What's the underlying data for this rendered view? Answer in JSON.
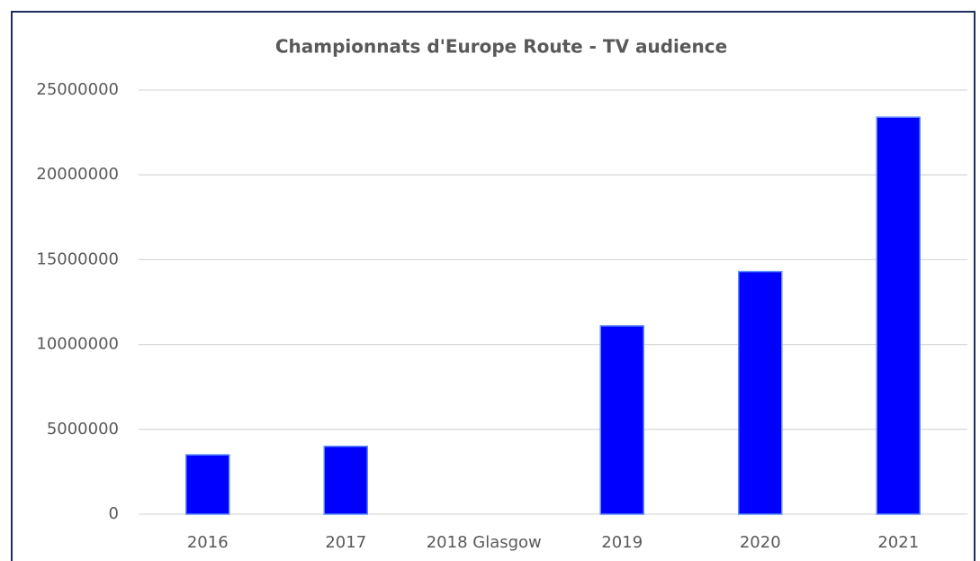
{
  "chart_data": {
    "type": "bar",
    "title": "Championnats d'Europe Route - TV audience",
    "categories": [
      "2016",
      "2017",
      "2018 Glasgow",
      "2019",
      "2020",
      "2021"
    ],
    "values": [
      3500000,
      4000000,
      null,
      11100000,
      14300000,
      23400000
    ],
    "color": "#0000ff",
    "ylim": [
      0,
      25000000
    ],
    "yticks": [
      0,
      5000000,
      10000000,
      15000000,
      20000000,
      25000000
    ],
    "grid": true
  }
}
